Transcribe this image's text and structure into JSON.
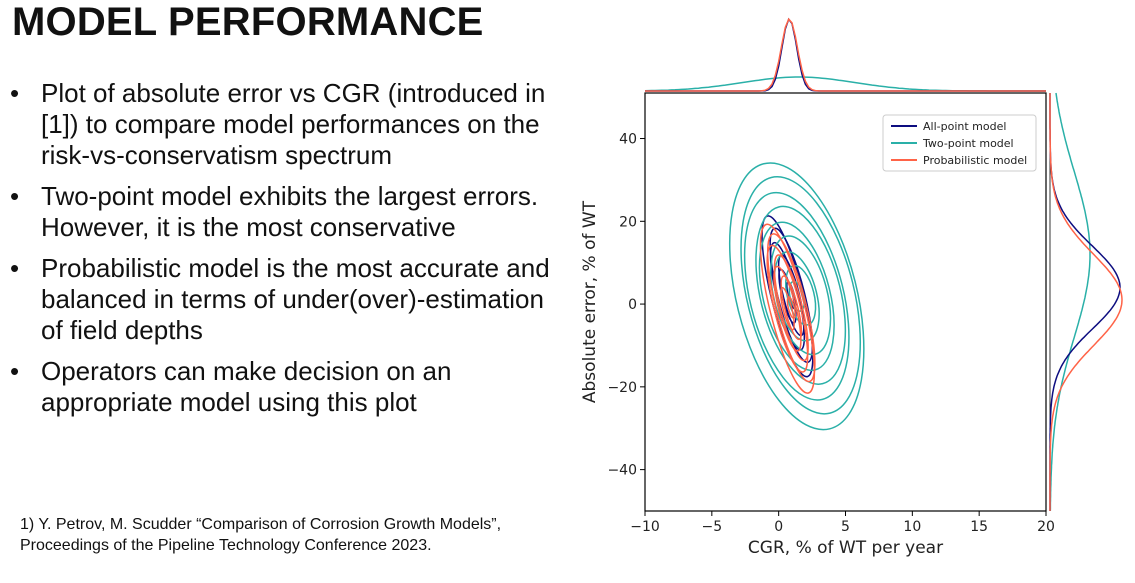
{
  "slide": {
    "title": "MODEL PERFORMANCE",
    "bullet_marker": "•",
    "bullets": [
      "Plot of absolute error vs CGR (introduced in [1]) to compare model performances on the risk-vs-conservatism spectrum",
      "Two-point model exhibits the largest errors. However, it is the most conservative",
      "Probabilistic model is the most accurate and balanced in terms of under(over)-estimation of field depths",
      "Operators can make decision on an appropriate model using this plot"
    ],
    "footnote": [
      "1) Y. Petrov, M. Scudder “Comparison of Corrosion Growth Models”,",
      "Proceedings of the Pipeline Technology Conference 2023."
    ]
  },
  "chart_data": {
    "type": "kde_joint",
    "title": "",
    "xlabel": "CGR, % of WT per year",
    "ylabel": "Absolute error, % of WT",
    "xlim": [
      -10,
      20
    ],
    "ylim": [
      -50,
      51
    ],
    "xticks": [
      -10,
      -5,
      0,
      5,
      10,
      15,
      20
    ],
    "yticks": [
      -40,
      -20,
      0,
      20,
      40
    ],
    "legend_position": "top-right",
    "series": [
      {
        "name": "All-point model",
        "color": "#0d0d80",
        "center": [
          0.8,
          2
        ],
        "spread": [
          1.2,
          20
        ],
        "levels": 6
      },
      {
        "name": "Two-point model",
        "color": "#2ab0a8",
        "center": [
          1.5,
          2
        ],
        "spread": [
          4.5,
          33
        ],
        "levels": 9
      },
      {
        "name": "Probabilistic model",
        "color": "#ff6347",
        "center": [
          0.8,
          -1
        ],
        "spread": [
          1.3,
          21
        ],
        "levels": 8
      }
    ]
  }
}
